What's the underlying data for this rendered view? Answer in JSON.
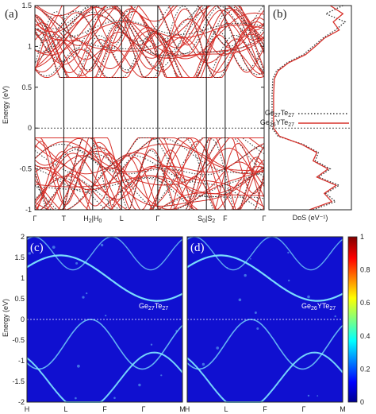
{
  "chart_data": [
    {
      "panel": "(a)",
      "type": "line",
      "ylabel": "Energy (eV)",
      "ylim": [
        -1,
        1.5
      ],
      "yticks": [
        "-1",
        "-0.5",
        "0",
        "0.5",
        "1",
        "1.5"
      ],
      "xticks": [
        "Γ",
        "T",
        "H2|H0",
        "L",
        "Γ",
        "S0|S2",
        "F",
        "Γ"
      ],
      "xtick_pos": [
        0,
        0.126,
        0.252,
        0.378,
        0.536,
        0.748,
        0.83,
        1.0
      ],
      "fermi_level": 0,
      "series": [
        {
          "name": "Ge27Te27",
          "style": "dotted",
          "color": "#333333"
        },
        {
          "name": "Ge26YTe27",
          "style": "solid",
          "color": "#d7302a"
        }
      ],
      "grid": false
    },
    {
      "panel": "(b)",
      "type": "line",
      "xlabel": "DoS (eV⁻¹)",
      "ylim": [
        -1,
        1.5
      ],
      "series": [
        {
          "name": "Ge27Te27",
          "style": "dotted",
          "color": "#333333",
          "energy": [
            -1.0,
            -0.9,
            -0.8,
            -0.7,
            -0.6,
            -0.5,
            -0.4,
            -0.3,
            -0.2,
            -0.1,
            0.0,
            0.1,
            0.2,
            0.4,
            0.6,
            0.7,
            0.8,
            0.9,
            1.0,
            1.1,
            1.2,
            1.3,
            1.4,
            1.5
          ],
          "dos": [
            0.55,
            0.85,
            0.72,
            0.9,
            0.62,
            0.78,
            0.58,
            0.62,
            0.42,
            0.08,
            0.0,
            0.0,
            0.0,
            0.0,
            0.01,
            0.06,
            0.2,
            0.42,
            0.55,
            0.68,
            0.85,
            0.98,
            0.72,
            0.95
          ]
        },
        {
          "name": "Ge26YTe27",
          "style": "solid",
          "color": "#d7302a",
          "energy": [
            -1.0,
            -0.9,
            -0.8,
            -0.7,
            -0.6,
            -0.5,
            -0.4,
            -0.3,
            -0.2,
            -0.1,
            0.0,
            0.1,
            0.2,
            0.4,
            0.6,
            0.7,
            0.8,
            0.9,
            1.0,
            1.1,
            1.2,
            1.3,
            1.4,
            1.5
          ],
          "dos": [
            0.5,
            0.8,
            0.7,
            0.86,
            0.6,
            0.75,
            0.55,
            0.6,
            0.4,
            0.1,
            0.02,
            0.02,
            0.02,
            0.02,
            0.03,
            0.08,
            0.22,
            0.45,
            0.58,
            0.7,
            0.9,
            0.82,
            0.95,
            0.78
          ]
        }
      ]
    },
    {
      "panel": "(c)",
      "type": "heatmap",
      "ylabel": "Energy (eV)",
      "ylim": [
        -2,
        2
      ],
      "yticks": [
        "-2",
        "-1.5",
        "-1",
        "-0.5",
        "0",
        "0.5",
        "1",
        "1.5",
        "2"
      ],
      "xticks": [
        "H",
        "L",
        "F",
        "Γ",
        "M"
      ],
      "annotation": "Ge27Te27",
      "fermi_level": 0
    },
    {
      "panel": "(d)",
      "type": "heatmap",
      "ylim": [
        -2,
        2
      ],
      "xticks": [
        "H",
        "L",
        "F",
        "Γ",
        "M"
      ],
      "annotation": "Ge26YTe27",
      "fermi_level": 0,
      "colorbar": {
        "min": 0,
        "max": 1,
        "ticks": [
          "0",
          "0.2",
          "0.4",
          "0.6",
          "0.8",
          "1"
        ]
      }
    }
  ],
  "colors": {
    "band_red": "#d7302a",
    "band_dots": "#333333",
    "map_bg": "#1010d0",
    "map_band": "#7fe8ff"
  }
}
